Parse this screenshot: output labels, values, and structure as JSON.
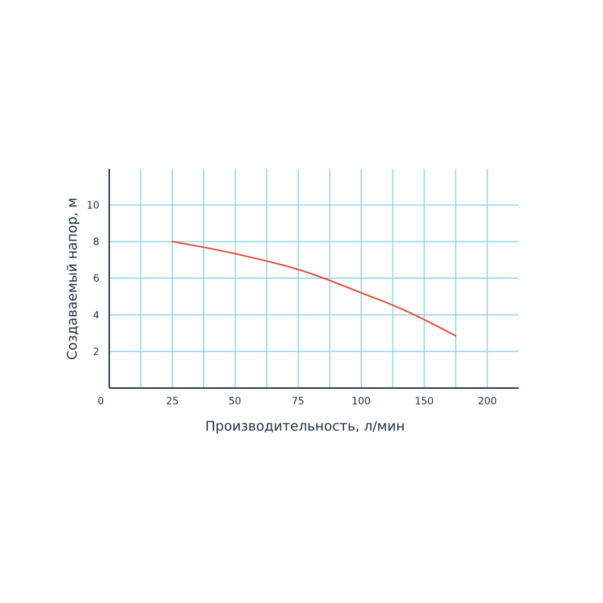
{
  "chart_data": {
    "type": "line",
    "xlabel": "Производительность, л/мин",
    "ylabel": "Создаваемый напор, м",
    "x_ticks": [
      "0",
      "25",
      "50",
      "75",
      "100",
      "150",
      "200"
    ],
    "y_ticks": [
      "2",
      "4",
      "6",
      "8",
      "10"
    ],
    "ylim": [
      0,
      12
    ],
    "grid": true,
    "series": [
      {
        "color": "#e0503c",
        "x": [
          25,
          37.5,
          50,
          62.5,
          75,
          87.5,
          100,
          125,
          150,
          175
        ],
        "y": [
          8.0,
          7.7,
          7.35,
          6.95,
          6.5,
          5.9,
          5.2,
          4.55,
          3.75,
          2.85
        ]
      }
    ],
    "colors": {
      "grid": "#8fd3ee",
      "axis": "#1d3045",
      "text": "#1d3045"
    }
  }
}
